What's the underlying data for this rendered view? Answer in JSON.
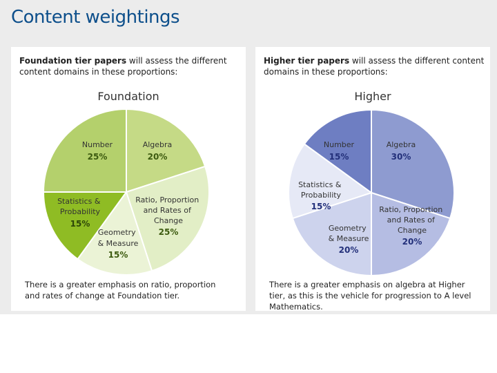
{
  "page": {
    "title": "Content weightings"
  },
  "panels": [
    {
      "intro_bold": "Foundation tier papers",
      "intro_rest": " will assess the different content domains in these proportions:",
      "footnote": "There is a greater emphasis on ratio, proportion and rates of change at Foundation tier."
    },
    {
      "intro_bold": "Higher tier papers",
      "intro_rest": " will assess the different content domains in these proportions:",
      "footnote": "There is a greater emphasis on algebra at Higher tier, as this is the vehicle for progression to A level Mathematics."
    }
  ],
  "chart_data": [
    {
      "type": "pie",
      "title": "Foundation",
      "slices": [
        {
          "label": "Algebra",
          "value": 20,
          "pct_label": "20%",
          "color": "#c5da86"
        },
        {
          "label": "Ratio, Proportion and Rates of Change",
          "value": 25,
          "pct_label": "25%",
          "color": "#e2eec6"
        },
        {
          "label": "Geometry & Measure",
          "value": 15,
          "pct_label": "15%",
          "color": "#ebf3d6"
        },
        {
          "label": "Statistics & Probability",
          "value": 15,
          "pct_label": "15%",
          "color": "#8fbc24"
        },
        {
          "label": "Number",
          "value": 25,
          "pct_label": "25%",
          "color": "#b4d06c"
        }
      ]
    },
    {
      "type": "pie",
      "title": "Higher",
      "slices": [
        {
          "label": "Algebra",
          "value": 30,
          "pct_label": "30%",
          "color": "#8e9bd0"
        },
        {
          "label": "Ratio, Proportion and Rates of Change",
          "value": 20,
          "pct_label": "20%",
          "color": "#b5bde3"
        },
        {
          "label": "Geometry & Measure",
          "value": 20,
          "pct_label": "20%",
          "color": "#cdd3ed"
        },
        {
          "label": "Statistics & Probability",
          "value": 15,
          "pct_label": "15%",
          "color": "#e6e9f6"
        },
        {
          "label": "Number",
          "value": 15,
          "pct_label": "15%",
          "color": "#6e7ec2"
        }
      ]
    }
  ]
}
